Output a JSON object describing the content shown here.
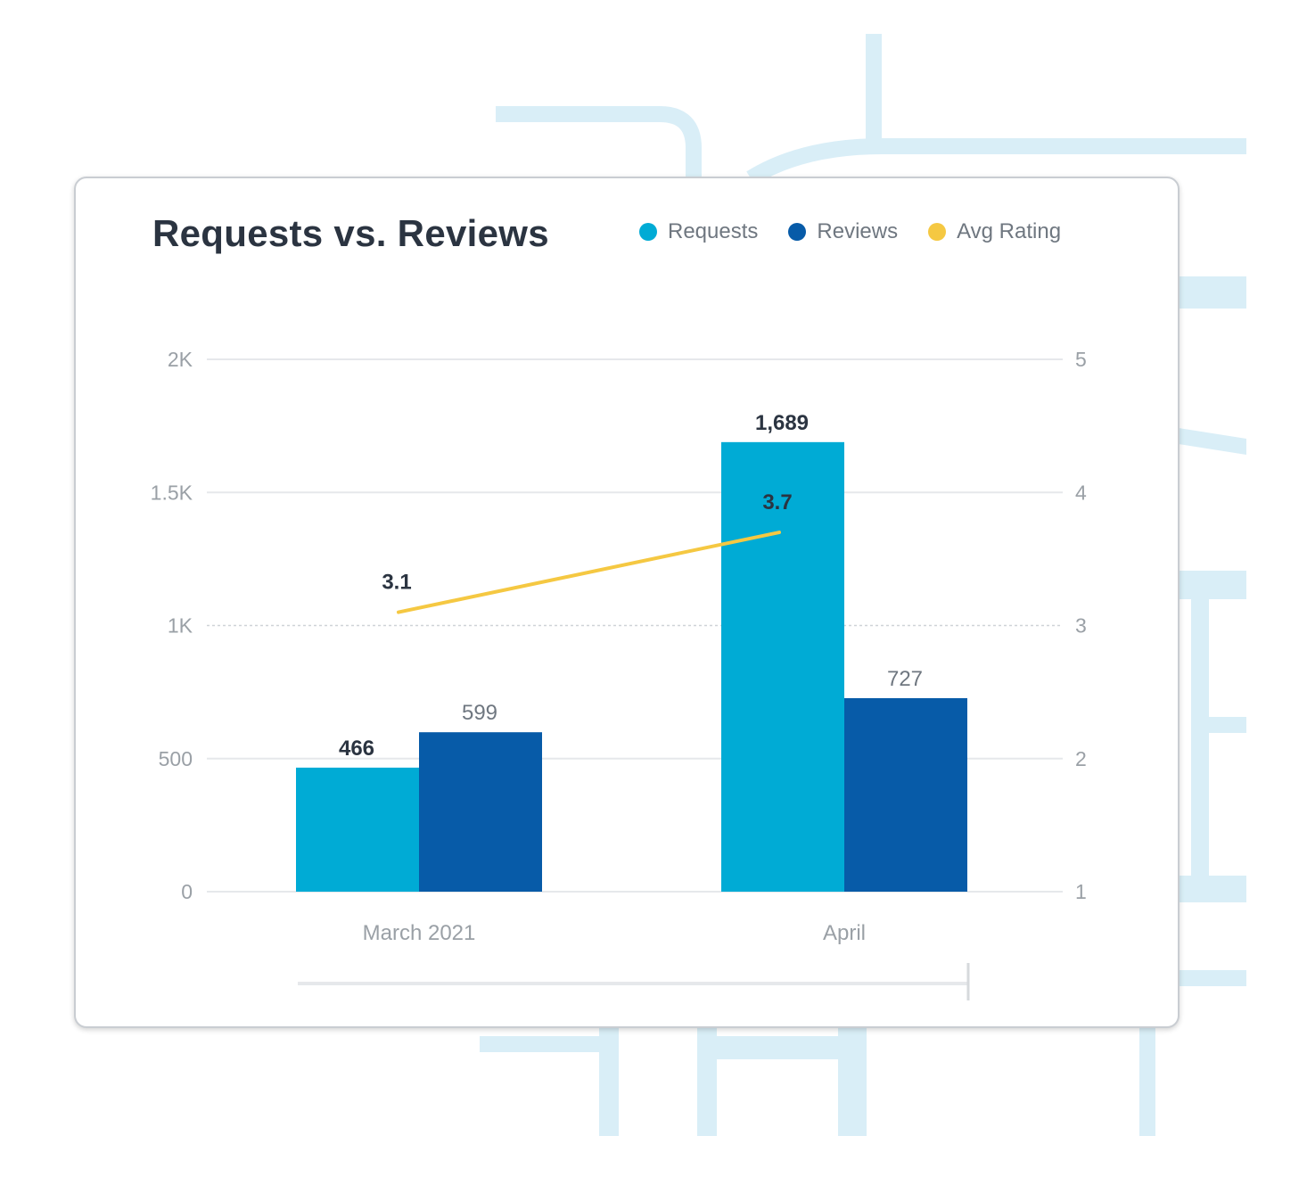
{
  "colors": {
    "requests": "#00abd5",
    "reviews": "#075ba8",
    "avg_rating": "#f5c842",
    "grid": "#e6e8eb",
    "axis_text": "#9aa0a6",
    "label_text": "#2b3441",
    "decor": "#d9eef7"
  },
  "legend": [
    {
      "name": "Requests",
      "color": "#00abd5"
    },
    {
      "name": "Reviews",
      "color": "#075ba8"
    },
    {
      "name": "Avg Rating",
      "color": "#f5c842"
    }
  ],
  "chart_data": {
    "type": "bar",
    "title": "Requests vs. Reviews",
    "categories": [
      "March 2021",
      "April"
    ],
    "series": [
      {
        "name": "Requests",
        "type": "bar",
        "axis": "left",
        "values": [
          466,
          1689
        ],
        "labels": [
          "466",
          "1,689"
        ]
      },
      {
        "name": "Reviews",
        "type": "bar",
        "axis": "left",
        "values": [
          599,
          727
        ],
        "labels": [
          "599",
          "727"
        ]
      },
      {
        "name": "Avg Rating",
        "type": "line",
        "axis": "right",
        "values": [
          3.1,
          3.7
        ],
        "labels": [
          "3.1",
          "3.7"
        ]
      }
    ],
    "y_left": {
      "range": [
        0,
        2000
      ],
      "ticks": [
        0,
        500,
        1000,
        1500,
        2000
      ],
      "tick_labels": [
        "0",
        "500",
        "1K",
        "1.5K",
        "2K"
      ]
    },
    "y_right": {
      "range": [
        1,
        5
      ],
      "ticks": [
        1,
        2,
        3,
        4,
        5
      ],
      "tick_labels": [
        "1",
        "2",
        "3",
        "4",
        "5"
      ]
    },
    "grid": true,
    "legend_position": "top-right"
  }
}
